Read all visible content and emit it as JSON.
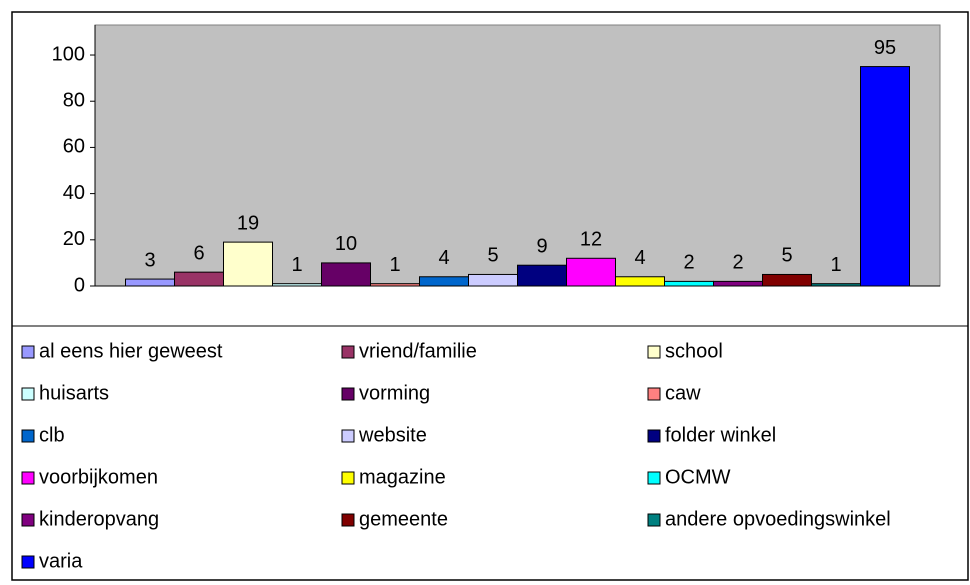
{
  "chart_data": {
    "type": "bar",
    "categories": [
      "al eens hier geweest",
      "vriend/familie",
      "school",
      "huisarts",
      "vorming",
      "caw",
      "clb",
      "website",
      "folder winkel",
      "voorbijkomen",
      "magazine",
      "OCMW",
      "kinderopvang",
      "gemeente",
      "andere opvoedingswinkel",
      "varia"
    ],
    "values": [
      3,
      6,
      19,
      1,
      10,
      1,
      4,
      5,
      9,
      12,
      4,
      2,
      2,
      5,
      1,
      95
    ],
    "colors": [
      "#9999ff",
      "#993366",
      "#ffffcc",
      "#ccffff",
      "#660066",
      "#ff8080",
      "#0066cc",
      "#ccccff",
      "#000080",
      "#ff00ff",
      "#ffff00",
      "#00ffff",
      "#800080",
      "#800000",
      "#008080",
      "#0000ff"
    ],
    "ylim": [
      0,
      113
    ],
    "yticks": [
      0,
      20,
      40,
      60,
      80,
      100
    ],
    "grid": false,
    "legend": "bottom"
  }
}
